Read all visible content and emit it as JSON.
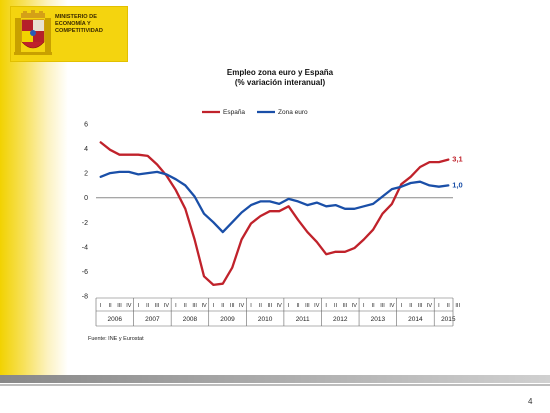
{
  "header": {
    "ministry_lines": [
      "MINISTERIO DE",
      "ECONOMÍA Y",
      "COMPETITIVIDAD"
    ],
    "emblem_icon": "spain-coat-of-arms-icon"
  },
  "colors": {
    "espana": "#c0222b",
    "zona_euro": "#1a4fa8",
    "accent": "#f4d40f"
  },
  "chart_data": {
    "type": "line",
    "title": "Empleo zona euro y España",
    "subtitle": "(% variación interanual)",
    "ylim": [
      -8,
      6
    ],
    "yticks": [
      6,
      4,
      2,
      0,
      -2,
      -4,
      -6,
      -8
    ],
    "quarter_labels": [
      "I",
      "II",
      "III",
      "IV"
    ],
    "years": [
      "2006",
      "2007",
      "2008",
      "2009",
      "2010",
      "2011",
      "2012",
      "2013",
      "2014",
      "2015"
    ],
    "last_year_quarters": 3,
    "legend_position": "top-center",
    "series": [
      {
        "name": "España",
        "color": "#c0222b",
        "end_label": "3,1",
        "values": [
          4.5,
          3.9,
          3.5,
          3.5,
          3.5,
          3.4,
          2.7,
          1.8,
          0.6,
          -0.9,
          -3.4,
          -6.4,
          -7.1,
          -7.0,
          -5.7,
          -3.4,
          -2.1,
          -1.5,
          -1.1,
          -1.1,
          -0.7,
          -1.8,
          -2.8,
          -3.6,
          -4.6,
          -4.4,
          -4.4,
          -4.1,
          -3.4,
          -2.6,
          -1.3,
          -0.5,
          1.1,
          1.7,
          2.5,
          2.9,
          2.9,
          3.1
        ]
      },
      {
        "name": "Zona euro",
        "color": "#1a4fa8",
        "end_label": "1,0",
        "values": [
          1.7,
          2.0,
          2.1,
          2.1,
          1.9,
          2.0,
          2.1,
          1.9,
          1.5,
          1.0,
          0.1,
          -1.3,
          -2.0,
          -2.8,
          -2.0,
          -1.2,
          -0.6,
          -0.3,
          -0.3,
          -0.5,
          -0.1,
          -0.3,
          -0.6,
          -0.4,
          -0.7,
          -0.6,
          -0.9,
          -0.9,
          -0.7,
          -0.5,
          0.1,
          0.7,
          0.9,
          1.2,
          1.3,
          1.0,
          0.9,
          1.0
        ]
      }
    ]
  },
  "source_text": "Fuente: INE y Eurostat",
  "page_number": "4"
}
